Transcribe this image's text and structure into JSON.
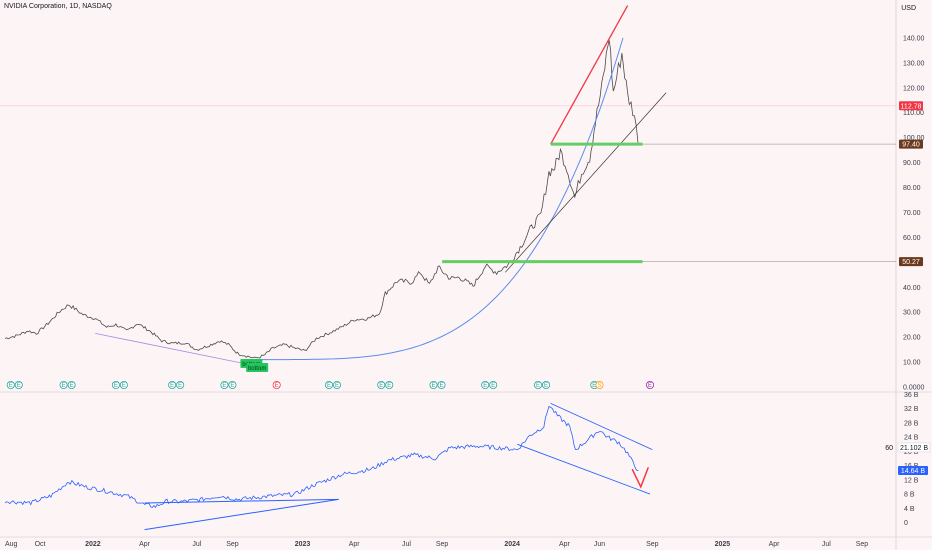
{
  "header": {
    "title": "NVIDIA Corporation, 1D, NASDAQ",
    "currency": "USD"
  },
  "chart_data": [
    {
      "type": "line",
      "title": "NVIDIA Corporation, 1D, NASDAQ",
      "ylabel": "USD",
      "ylim": [
        0,
        150
      ],
      "grid": false,
      "y_ticks": [
        "140.00",
        "130.00",
        "120.00",
        "110.00",
        "100.00",
        "90.00",
        "80.00",
        "70.00",
        "60.00",
        "50.00",
        "40.00",
        "30.00",
        "20.00",
        "10.00",
        "0.0000"
      ],
      "x_ticks": [
        "Aug",
        "Oct",
        "2022",
        "Apr",
        "Jul",
        "Sep",
        "2023",
        "Apr",
        "Jul",
        "Sep",
        "2024",
        "Apr",
        "Jun",
        "Sep",
        "2025",
        "Apr",
        "Jul",
        "Sep"
      ],
      "series": [
        {
          "values_by_date": [
            [
              "2021-08-01",
              19.5
            ],
            [
              "2021-08-20",
              20.5
            ],
            [
              "2021-09-10",
              22.5
            ],
            [
              "2021-09-25",
              21.5
            ],
            [
              "2021-10-15",
              25.5
            ],
            [
              "2021-11-05",
              30.5
            ],
            [
              "2021-11-20",
              33.0
            ],
            [
              "2021-11-30",
              31.5
            ],
            [
              "2021-12-15",
              29.0
            ],
            [
              "2022-01-05",
              27.5
            ],
            [
              "2022-01-25",
              24.0
            ],
            [
              "2022-02-10",
              25.0
            ],
            [
              "2022-03-01",
              22.5
            ],
            [
              "2022-03-20",
              25.5
            ],
            [
              "2022-04-10",
              22.5
            ],
            [
              "2022-05-01",
              18.5
            ],
            [
              "2022-05-20",
              17.5
            ],
            [
              "2022-06-10",
              17.8
            ],
            [
              "2022-07-01",
              15.0
            ],
            [
              "2022-07-20",
              16.5
            ],
            [
              "2022-08-10",
              18.5
            ],
            [
              "2022-08-25",
              17.0
            ],
            [
              "2022-09-10",
              13.5
            ],
            [
              "2022-09-25",
              12.5
            ],
            [
              "2022-10-10",
              11.5
            ],
            [
              "2022-10-25",
              12.5
            ],
            [
              "2022-11-10",
              15.5
            ],
            [
              "2022-12-01",
              17.0
            ],
            [
              "2022-12-20",
              15.5
            ],
            [
              "2023-01-05",
              14.5
            ],
            [
              "2023-01-25",
              19.5
            ],
            [
              "2023-02-15",
              21.5
            ],
            [
              "2023-03-10",
              24.0
            ],
            [
              "2023-04-01",
              27.0
            ],
            [
              "2023-04-25",
              27.5
            ],
            [
              "2023-05-15",
              29.5
            ],
            [
              "2023-05-25",
              37.5
            ],
            [
              "2023-06-15",
              42.5
            ],
            [
              "2023-07-10",
              42.0
            ],
            [
              "2023-07-25",
              46.0
            ],
            [
              "2023-08-10",
              41.0
            ],
            [
              "2023-08-25",
              48.0
            ],
            [
              "2023-09-15",
              43.5
            ],
            [
              "2023-10-01",
              44.0
            ],
            [
              "2023-10-25",
              40.5
            ],
            [
              "2023-11-15",
              48.5
            ],
            [
              "2023-12-05",
              46.0
            ],
            [
              "2023-12-25",
              49.0
            ],
            [
              "2024-01-15",
              56.0
            ],
            [
              "2024-02-01",
              63.0
            ],
            [
              "2024-02-20",
              69.0
            ],
            [
              "2024-03-05",
              86.0
            ],
            [
              "2024-03-15",
              88.0
            ],
            [
              "2024-03-25",
              94.5
            ],
            [
              "2024-04-05",
              88.0
            ],
            [
              "2024-04-19",
              76.0
            ],
            [
              "2024-05-01",
              86.0
            ],
            [
              "2024-05-15",
              92.0
            ],
            [
              "2024-05-25",
              106.5
            ],
            [
              "2024-06-05",
              120.0
            ],
            [
              "2024-06-18",
              140.8
            ],
            [
              "2024-06-25",
              118.0
            ],
            [
              "2024-07-10",
              134.0
            ],
            [
              "2024-07-20",
              117.0
            ],
            [
              "2024-08-01",
              109.0
            ],
            [
              "2024-08-07",
              98.0
            ]
          ]
        }
      ],
      "price_labels": [
        {
          "value": "112.78",
          "color": "#f23645"
        },
        {
          "value": "97.40",
          "color": "#6b3a1e"
        },
        {
          "value": "50.27",
          "color": "#6b3a1e"
        }
      ],
      "annotations": {
        "support_levels": [
          {
            "from": "2024-03-08",
            "to": "2024-08-15",
            "value": 97.4
          },
          {
            "from": "2023-09-01",
            "to": "2024-08-15",
            "value": 50.27
          }
        ],
        "callouts": [
          "bottom",
          "bottom"
        ],
        "event_markers": [
          {
            "date": "2021-08-18",
            "kind": "E",
            "count": 2
          },
          {
            "date": "2021-11-18",
            "kind": "E",
            "count": 2
          },
          {
            "date": "2022-02-17",
            "kind": "E",
            "count": 2
          },
          {
            "date": "2022-05-26",
            "kind": "E",
            "count": 2
          },
          {
            "date": "2022-08-25",
            "kind": "E",
            "count": 2
          },
          {
            "date": "2022-11-17",
            "kind": "E",
            "count": 1,
            "color": "#f23645"
          },
          {
            "date": "2023-02-23",
            "kind": "E",
            "count": 2
          },
          {
            "date": "2023-05-25",
            "kind": "E",
            "count": 2
          },
          {
            "date": "2023-08-24",
            "kind": "E",
            "count": 2
          },
          {
            "date": "2023-11-22",
            "kind": "E",
            "count": 2
          },
          {
            "date": "2024-02-22",
            "kind": "E",
            "count": 2
          },
          {
            "date": "2024-05-23",
            "kind": "E",
            "count": 1
          },
          {
            "date": "2024-06-01",
            "kind": "S",
            "count": 1,
            "color": "#ff9800"
          },
          {
            "date": "2024-08-28",
            "kind": "E",
            "count": 1,
            "color": "#9c27b0"
          }
        ]
      }
    },
    {
      "type": "line",
      "title": "",
      "ylim": [
        0,
        36
      ],
      "y_ticks": [
        "36 B",
        "32 B",
        "28 B",
        "24 B",
        "20 B",
        "16 B",
        "12 B",
        "8 B",
        "4 B",
        "0"
      ],
      "series": [
        {
          "values_by_date": [
            [
              "2021-08-01",
              6.0
            ],
            [
              "2021-09-15",
              5.5
            ],
            [
              "2021-10-20",
              7.5
            ],
            [
              "2021-11-20",
              11.5
            ],
            [
              "2021-12-20",
              10.0
            ],
            [
              "2022-01-20",
              9.0
            ],
            [
              "2022-03-01",
              7.5
            ],
            [
              "2022-04-01",
              5.0
            ],
            [
              "2022-04-20",
              4.5
            ],
            [
              "2022-05-10",
              6.0
            ],
            [
              "2022-06-01",
              5.8
            ],
            [
              "2022-07-10",
              6.5
            ],
            [
              "2022-08-10",
              7.5
            ],
            [
              "2022-09-10",
              6.5
            ],
            [
              "2022-10-10",
              7.0
            ],
            [
              "2022-11-10",
              7.5
            ],
            [
              "2022-12-20",
              8.0
            ],
            [
              "2023-01-20",
              10.5
            ],
            [
              "2023-03-10",
              13.5
            ],
            [
              "2023-05-01",
              15.0
            ],
            [
              "2023-05-30",
              17.5
            ],
            [
              "2023-07-15",
              19.0
            ],
            [
              "2023-08-20",
              18.0
            ],
            [
              "2023-09-15",
              21.0
            ],
            [
              "2023-11-01",
              21.5
            ],
            [
              "2023-12-10",
              21.0
            ],
            [
              "2024-01-10",
              20.5
            ],
            [
              "2024-02-01",
              24.5
            ],
            [
              "2024-02-25",
              27.0
            ],
            [
              "2024-03-05",
              33.0
            ],
            [
              "2024-03-20",
              30.0
            ],
            [
              "2024-04-10",
              27.0
            ],
            [
              "2024-04-20",
              20.5
            ],
            [
              "2024-05-10",
              23.0
            ],
            [
              "2024-06-01",
              26.0
            ],
            [
              "2024-06-15",
              24.0
            ],
            [
              "2024-07-05",
              22.5
            ],
            [
              "2024-07-20",
              19.5
            ],
            [
              "2024-08-01",
              16.0
            ],
            [
              "2024-08-08",
              14.6
            ]
          ]
        }
      ],
      "value_labels": [
        {
          "prefix": "60",
          "value": "21.102 B"
        },
        {
          "value": "14.64 B",
          "color": "#2962ff"
        }
      ]
    }
  ],
  "colors": {
    "background": "#fdf4f6",
    "price_line": "#4a4a4a",
    "curve": "#5b8def",
    "trend_red": "#f23645",
    "support_green": "#66cc66",
    "indicator_line": "#2962ff",
    "channel": "#2962ff",
    "badge_green": "#22c55e"
  }
}
